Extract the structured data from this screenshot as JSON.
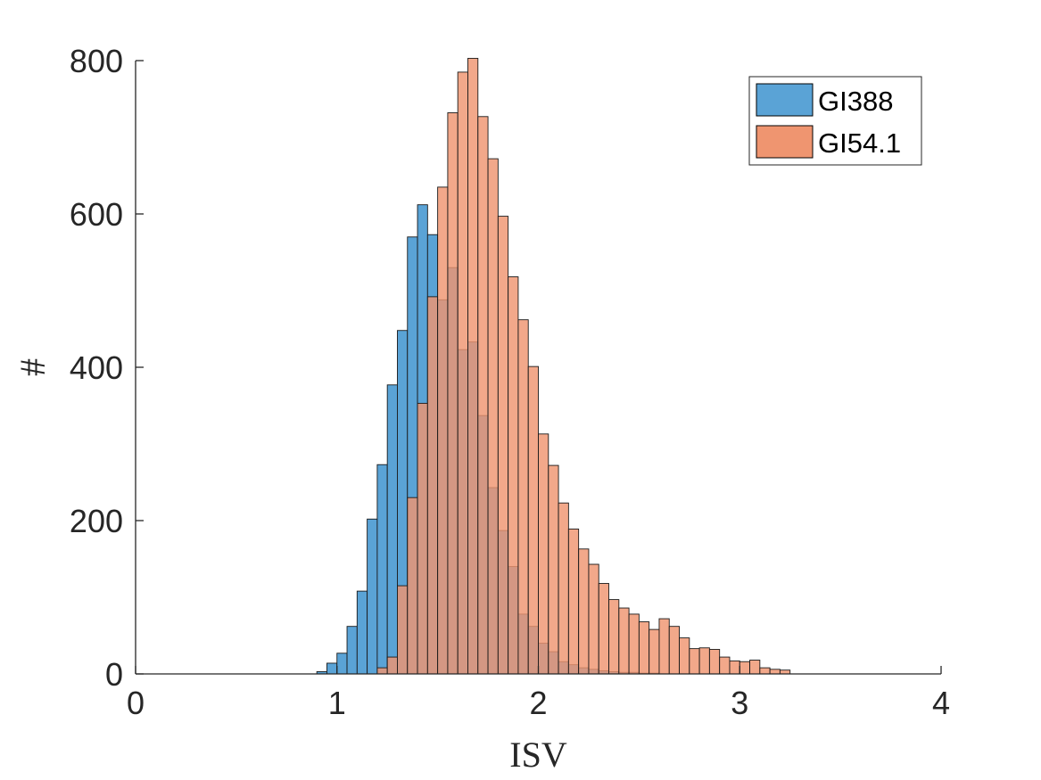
{
  "chart_data": {
    "type": "bar",
    "title": "",
    "xlabel": "ISV",
    "ylabel": "#",
    "xlim": [
      0,
      4
    ],
    "ylim": [
      0,
      800
    ],
    "xticks": [
      0,
      1,
      2,
      3,
      4
    ],
    "yticks": [
      0,
      200,
      400,
      600,
      800
    ],
    "grid": false,
    "legend_position": "top-right",
    "bin_width": 0.05,
    "series": [
      {
        "name": "GI388",
        "color": "#5aa3d6",
        "bins": [
          {
            "x": 0.8,
            "y": 0
          },
          {
            "x": 0.85,
            "y": 0
          },
          {
            "x": 0.9,
            "y": 3
          },
          {
            "x": 0.95,
            "y": 14
          },
          {
            "x": 1.0,
            "y": 27
          },
          {
            "x": 1.05,
            "y": 62
          },
          {
            "x": 1.1,
            "y": 108
          },
          {
            "x": 1.15,
            "y": 202
          },
          {
            "x": 1.2,
            "y": 273
          },
          {
            "x": 1.25,
            "y": 377
          },
          {
            "x": 1.3,
            "y": 448
          },
          {
            "x": 1.35,
            "y": 570
          },
          {
            "x": 1.4,
            "y": 612
          },
          {
            "x": 1.45,
            "y": 573
          },
          {
            "x": 1.5,
            "y": 488
          },
          {
            "x": 1.55,
            "y": 530
          },
          {
            "x": 1.6,
            "y": 423
          },
          {
            "x": 1.65,
            "y": 433
          },
          {
            "x": 1.7,
            "y": 337
          },
          {
            "x": 1.75,
            "y": 243
          },
          {
            "x": 1.8,
            "y": 187
          },
          {
            "x": 1.85,
            "y": 140
          },
          {
            "x": 1.9,
            "y": 78
          },
          {
            "x": 1.95,
            "y": 62
          },
          {
            "x": 2.0,
            "y": 40
          },
          {
            "x": 2.05,
            "y": 29
          },
          {
            "x": 2.1,
            "y": 16
          },
          {
            "x": 2.15,
            "y": 12
          },
          {
            "x": 2.2,
            "y": 8
          },
          {
            "x": 2.25,
            "y": 6
          },
          {
            "x": 2.3,
            "y": 4
          },
          {
            "x": 2.35,
            "y": 3
          },
          {
            "x": 2.4,
            "y": 2
          },
          {
            "x": 2.45,
            "y": 2
          },
          {
            "x": 2.5,
            "y": 1
          },
          {
            "x": 2.55,
            "y": 1
          }
        ]
      },
      {
        "name": "GI54.1",
        "color": "#ef9570",
        "bins": [
          {
            "x": 1.2,
            "y": 8
          },
          {
            "x": 1.25,
            "y": 22
          },
          {
            "x": 1.3,
            "y": 115
          },
          {
            "x": 1.35,
            "y": 230
          },
          {
            "x": 1.4,
            "y": 353
          },
          {
            "x": 1.45,
            "y": 492
          },
          {
            "x": 1.5,
            "y": 635
          },
          {
            "x": 1.55,
            "y": 732
          },
          {
            "x": 1.6,
            "y": 785
          },
          {
            "x": 1.65,
            "y": 803
          },
          {
            "x": 1.7,
            "y": 727
          },
          {
            "x": 1.75,
            "y": 672
          },
          {
            "x": 1.8,
            "y": 597
          },
          {
            "x": 1.85,
            "y": 518
          },
          {
            "x": 1.9,
            "y": 462
          },
          {
            "x": 1.95,
            "y": 401
          },
          {
            "x": 2.0,
            "y": 313
          },
          {
            "x": 2.05,
            "y": 272
          },
          {
            "x": 2.1,
            "y": 223
          },
          {
            "x": 2.15,
            "y": 189
          },
          {
            "x": 2.2,
            "y": 163
          },
          {
            "x": 2.25,
            "y": 143
          },
          {
            "x": 2.3,
            "y": 118
          },
          {
            "x": 2.35,
            "y": 97
          },
          {
            "x": 2.4,
            "y": 86
          },
          {
            "x": 2.45,
            "y": 78
          },
          {
            "x": 2.5,
            "y": 68
          },
          {
            "x": 2.55,
            "y": 58
          },
          {
            "x": 2.6,
            "y": 72
          },
          {
            "x": 2.65,
            "y": 62
          },
          {
            "x": 2.7,
            "y": 47
          },
          {
            "x": 2.75,
            "y": 33
          },
          {
            "x": 2.8,
            "y": 34
          },
          {
            "x": 2.85,
            "y": 32
          },
          {
            "x": 2.9,
            "y": 22
          },
          {
            "x": 2.95,
            "y": 17
          },
          {
            "x": 3.0,
            "y": 16
          },
          {
            "x": 3.05,
            "y": 18
          },
          {
            "x": 3.1,
            "y": 8
          },
          {
            "x": 3.15,
            "y": 6
          },
          {
            "x": 3.2,
            "y": 5
          }
        ]
      }
    ]
  }
}
